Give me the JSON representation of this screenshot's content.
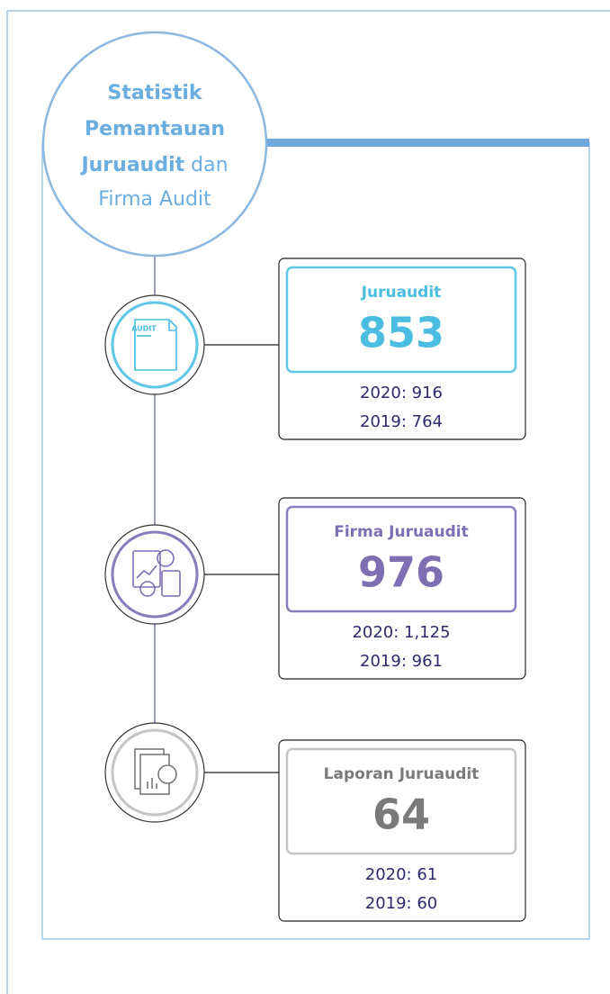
{
  "header": {
    "title": {
      "line1": "Statistik",
      "line2": "Pemantauan",
      "line3_bold": "Juruaudit",
      "line3_regular": "dan",
      "line4": "Firma Audit"
    }
  },
  "cards": [
    {
      "label": "Juruaudit",
      "value": 853,
      "history": [
        "2020: 916",
        "2019: 764"
      ],
      "icon_text": "AUDIT",
      "color": "#5ec6e6",
      "text_color": "#4bbde0"
    },
    {
      "label": "Firma Juruaudit",
      "value": 976,
      "history": [
        "2020: 1,125",
        "2019: 961"
      ],
      "color": "#8a7cbc",
      "text_color": "#7e6fb3"
    },
    {
      "label": "Laporan Juruaudit",
      "value": 64,
      "history": [
        "2020: 61",
        "2019: 60"
      ],
      "color": "#c4c4c4",
      "text_color": "#7a7a7a"
    }
  ]
}
